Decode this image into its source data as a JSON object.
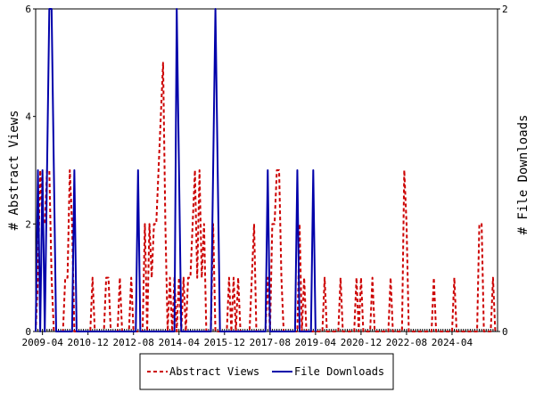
{
  "chart_data": {
    "type": "line",
    "title": "",
    "x_axis": {
      "start": "2009-01",
      "end": "2025-12",
      "tick_labels": [
        "2009-04",
        "2010-12",
        "2012-08",
        "2014-04",
        "2015-12",
        "2017-08",
        "2019-04",
        "2020-12",
        "2022-08",
        "2024-04"
      ],
      "tick_dates": [
        "2009-04",
        "2010-12",
        "2012-08",
        "2014-04",
        "2015-12",
        "2017-08",
        "2019-04",
        "2020-12",
        "2022-08",
        "2024-04"
      ]
    },
    "y_left": {
      "label": "# Abstract Views",
      "min": 0,
      "max": 6,
      "tick_labels": [
        "0",
        "2",
        "4",
        "6"
      ]
    },
    "y_right": {
      "label": "# File Downloads",
      "min": 0,
      "max": 2,
      "tick_labels": [
        "0",
        "2"
      ]
    },
    "grid": false,
    "legend": {
      "placement": "bottom-center"
    },
    "series": [
      {
        "name": "Abstract Views",
        "axis": "left",
        "color": "#cc0000",
        "style": "dashed",
        "points": [
          [
            "2009-01",
            0
          ],
          [
            "2009-02",
            1
          ],
          [
            "2009-03",
            3
          ],
          [
            "2009-04",
            2
          ],
          [
            "2009-05",
            2
          ],
          [
            "2009-06",
            3
          ],
          [
            "2009-07",
            3
          ],
          [
            "2009-08",
            1
          ],
          [
            "2009-09",
            0
          ],
          [
            "2010-01",
            0
          ],
          [
            "2010-02",
            1
          ],
          [
            "2010-03",
            1
          ],
          [
            "2010-04",
            3
          ],
          [
            "2010-05",
            2
          ],
          [
            "2010-06",
            0
          ],
          [
            "2011-01",
            0
          ],
          [
            "2011-02",
            1
          ],
          [
            "2011-03",
            0
          ],
          [
            "2011-07",
            0
          ],
          [
            "2011-08",
            1
          ],
          [
            "2011-09",
            1
          ],
          [
            "2011-10",
            0
          ],
          [
            "2012-01",
            0
          ],
          [
            "2012-02",
            1
          ],
          [
            "2012-03",
            0
          ],
          [
            "2012-06",
            0
          ],
          [
            "2012-07",
            1
          ],
          [
            "2012-08",
            0
          ],
          [
            "2012-12",
            0
          ],
          [
            "2013-01",
            2
          ],
          [
            "2013-02",
            0
          ],
          [
            "2013-03",
            2
          ],
          [
            "2013-04",
            1
          ],
          [
            "2013-05",
            2
          ],
          [
            "2013-06",
            2
          ],
          [
            "2013-07",
            3
          ],
          [
            "2013-08",
            4
          ],
          [
            "2013-09",
            5
          ],
          [
            "2013-10",
            2
          ],
          [
            "2013-11",
            0
          ],
          [
            "2013-12",
            1
          ],
          [
            "2014-01",
            0
          ],
          [
            "2014-02",
            1
          ],
          [
            "2014-03",
            0
          ],
          [
            "2014-04",
            1
          ],
          [
            "2014-05",
            0
          ],
          [
            "2014-06",
            1
          ],
          [
            "2014-07",
            0
          ],
          [
            "2014-08",
            1
          ],
          [
            "2014-09",
            1
          ],
          [
            "2014-10",
            2
          ],
          [
            "2014-11",
            3
          ],
          [
            "2014-12",
            1
          ],
          [
            "2015-01",
            3
          ],
          [
            "2015-02",
            1
          ],
          [
            "2015-03",
            2
          ],
          [
            "2015-04",
            0
          ],
          [
            "2015-06",
            0
          ],
          [
            "2015-07",
            2
          ],
          [
            "2015-08",
            0
          ],
          [
            "2016-01",
            0
          ],
          [
            "2016-02",
            1
          ],
          [
            "2016-03",
            0
          ],
          [
            "2016-04",
            1
          ],
          [
            "2016-05",
            0
          ],
          [
            "2016-06",
            1
          ],
          [
            "2016-07",
            0
          ],
          [
            "2016-11",
            0
          ],
          [
            "2016-12",
            1
          ],
          [
            "2017-01",
            2
          ],
          [
            "2017-02",
            0
          ],
          [
            "2017-06",
            0
          ],
          [
            "2017-07",
            1
          ],
          [
            "2017-08",
            0
          ],
          [
            "2017-09",
            2
          ],
          [
            "2017-10",
            2
          ],
          [
            "2017-11",
            3
          ],
          [
            "2017-12",
            3
          ],
          [
            "2018-01",
            1
          ],
          [
            "2018-02",
            0
          ],
          [
            "2018-08",
            0
          ],
          [
            "2018-09",
            2
          ],
          [
            "2018-10",
            0
          ],
          [
            "2018-11",
            1
          ],
          [
            "2018-12",
            0
          ],
          [
            "2019-07",
            0
          ],
          [
            "2019-08",
            1
          ],
          [
            "2019-09",
            0
          ],
          [
            "2020-02",
            0
          ],
          [
            "2020-03",
            1
          ],
          [
            "2020-04",
            0
          ],
          [
            "2020-09",
            0
          ],
          [
            "2020-10",
            1
          ],
          [
            "2020-11",
            0
          ],
          [
            "2020-12",
            1
          ],
          [
            "2020-13",
            0
          ],
          [
            "2021-04",
            0
          ],
          [
            "2021-05",
            1
          ],
          [
            "2021-06",
            0
          ],
          [
            "2021-12",
            0
          ],
          [
            "2022-01",
            1
          ],
          [
            "2022-02",
            0
          ],
          [
            "2022-06",
            0
          ],
          [
            "2022-07",
            3
          ],
          [
            "2022-08",
            2
          ],
          [
            "2022-09",
            0
          ],
          [
            "2023-07",
            0
          ],
          [
            "2023-08",
            1
          ],
          [
            "2023-09",
            0
          ],
          [
            "2024-04",
            0
          ],
          [
            "2024-05",
            1
          ],
          [
            "2024-06",
            0
          ],
          [
            "2025-03",
            0
          ],
          [
            "2025-04",
            2
          ],
          [
            "2025-05",
            2
          ],
          [
            "2025-06",
            0
          ],
          [
            "2025-09",
            0
          ],
          [
            "2025-10",
            1
          ],
          [
            "2025-11",
            0
          ]
        ]
      },
      {
        "name": "File Downloads",
        "axis": "right",
        "color": "#0000aa",
        "style": "solid",
        "points": [
          [
            "2009-01",
            0
          ],
          [
            "2009-02",
            1
          ],
          [
            "2009-03",
            0
          ],
          [
            "2009-04",
            1
          ],
          [
            "2009-05",
            0
          ],
          [
            "2009-06",
            1
          ],
          [
            "2009-07",
            2
          ],
          [
            "2009-08",
            2
          ],
          [
            "2009-09",
            1
          ],
          [
            "2009-10",
            0
          ],
          [
            "2010-05",
            0
          ],
          [
            "2010-06",
            1
          ],
          [
            "2010-07",
            0
          ],
          [
            "2012-09",
            0
          ],
          [
            "2012-10",
            1
          ],
          [
            "2012-11",
            0
          ],
          [
            "2014-02",
            0
          ],
          [
            "2014-03",
            2
          ],
          [
            "2014-04",
            1
          ],
          [
            "2014-05",
            0
          ],
          [
            "2015-06",
            0
          ],
          [
            "2015-07",
            1
          ],
          [
            "2015-08",
            2
          ],
          [
            "2015-09",
            1
          ],
          [
            "2015-10",
            0
          ],
          [
            "2017-06",
            0
          ],
          [
            "2017-07",
            1
          ],
          [
            "2017-08",
            0
          ],
          [
            "2018-07",
            0
          ],
          [
            "2018-08",
            1
          ],
          [
            "2018-09",
            0
          ],
          [
            "2019-02",
            0
          ],
          [
            "2019-03",
            1
          ],
          [
            "2019-04",
            0
          ]
        ]
      }
    ]
  }
}
